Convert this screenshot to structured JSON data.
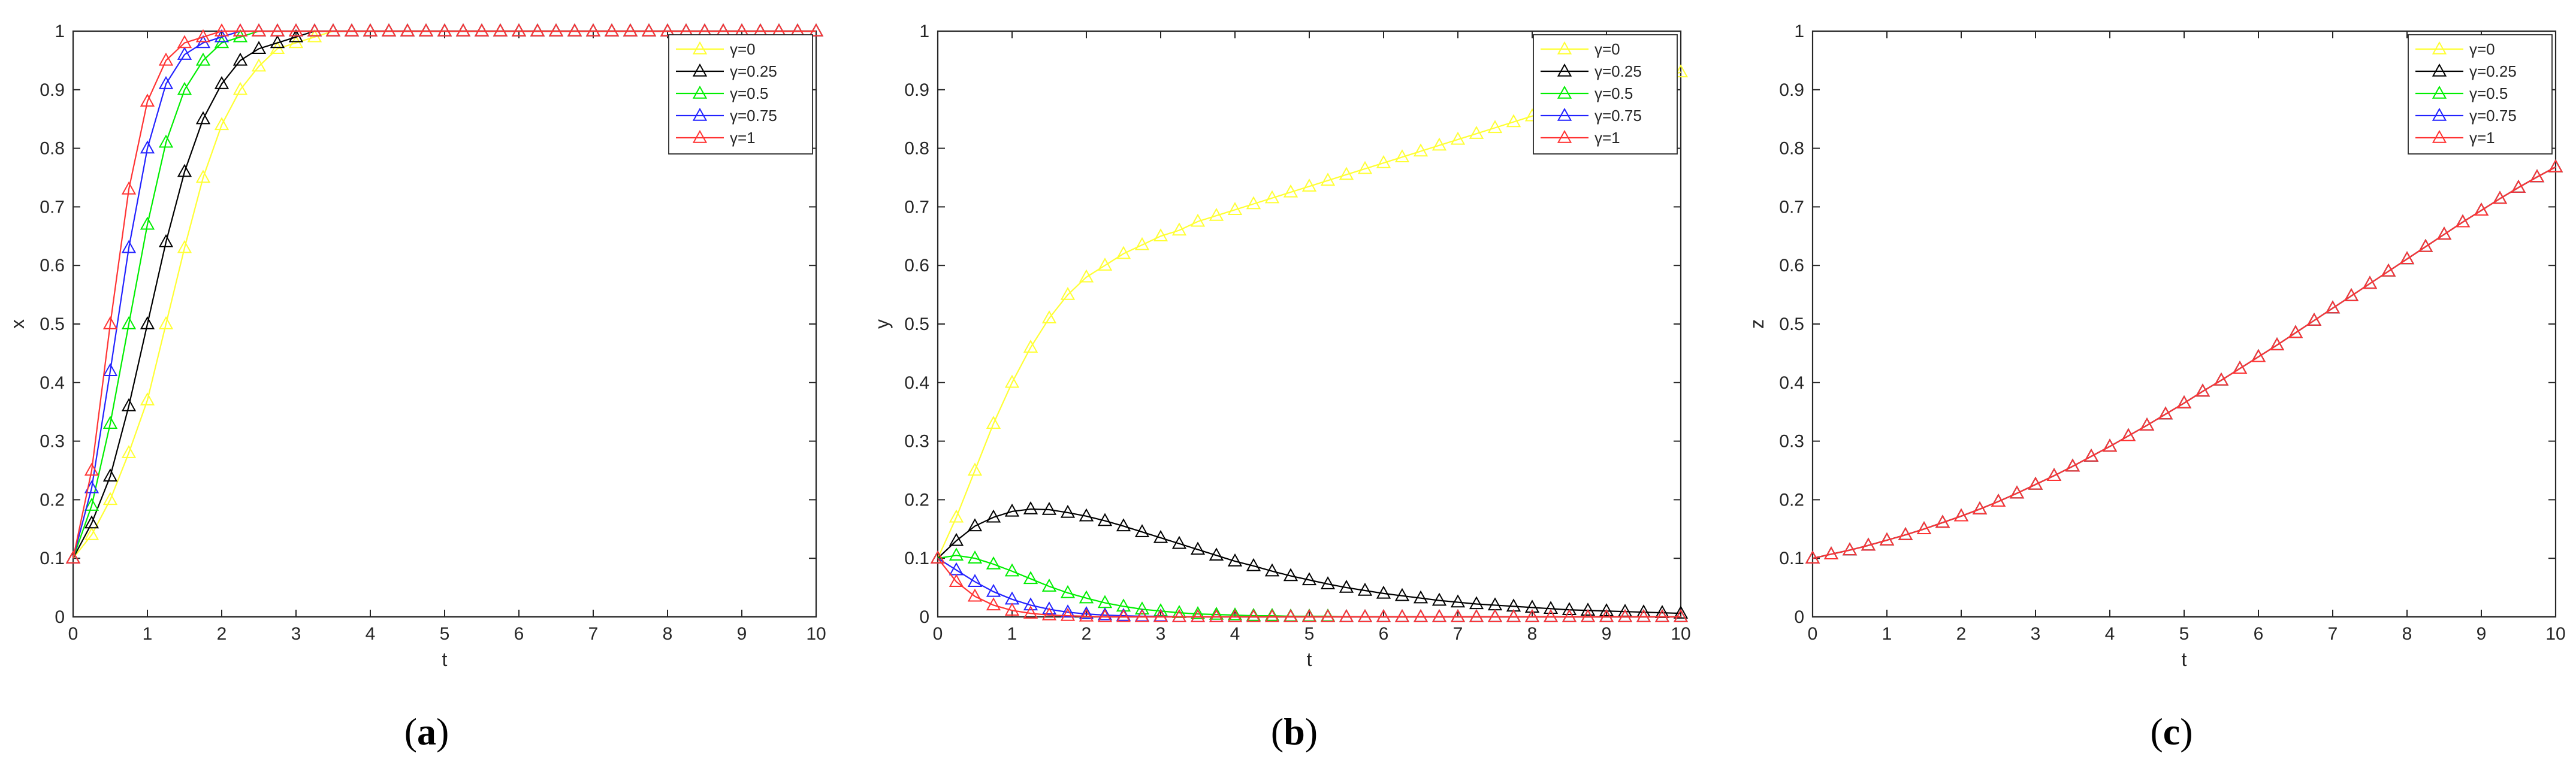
{
  "captions": [
    {
      "open": "(",
      "letter": "a",
      "close": ")"
    },
    {
      "open": "(",
      "letter": "b",
      "close": ")"
    },
    {
      "open": "(",
      "letter": "c",
      "close": ")"
    }
  ],
  "chart_data": [
    {
      "type": "line",
      "title": "",
      "xlabel": "t",
      "ylabel": "x",
      "xlim": [
        0,
        10
      ],
      "ylim": [
        0,
        1
      ],
      "xticks": [
        0,
        1,
        2,
        3,
        4,
        5,
        6,
        7,
        8,
        9,
        10
      ],
      "yticks": [
        0,
        0.1,
        0.2,
        0.3,
        0.4,
        0.5,
        0.6,
        0.7,
        0.8,
        0.9,
        1
      ],
      "legend_position": "top-right",
      "grid": false,
      "marker": "triangle",
      "x": [
        0,
        0.25,
        0.5,
        0.75,
        1,
        1.25,
        1.5,
        1.75,
        2,
        2.25,
        2.5,
        2.75,
        3,
        3.25,
        3.5,
        3.75,
        4,
        4.25,
        4.5,
        4.75,
        5,
        5.25,
        5.5,
        5.75,
        6,
        6.25,
        6.5,
        6.75,
        7,
        7.25,
        7.5,
        7.75,
        8,
        8.25,
        8.5,
        8.75,
        9,
        9.25,
        9.5,
        9.75,
        10
      ],
      "series": [
        {
          "name": "γ=0",
          "color": "#ffff33",
          "values": [
            0.1,
            0.14,
            0.2,
            0.28,
            0.37,
            0.5,
            0.63,
            0.75,
            0.84,
            0.9,
            0.94,
            0.97,
            0.98,
            0.99,
            1,
            1,
            1,
            1,
            1,
            1,
            1,
            1,
            1,
            1,
            1,
            1,
            1,
            1,
            1,
            1,
            1,
            1,
            1,
            1,
            1,
            1,
            1,
            1,
            1,
            1,
            1
          ]
        },
        {
          "name": "γ=0.25",
          "color": "#000000",
          "values": [
            0.1,
            0.16,
            0.24,
            0.36,
            0.5,
            0.64,
            0.76,
            0.85,
            0.91,
            0.95,
            0.97,
            0.98,
            0.99,
            1,
            1,
            1,
            1,
            1,
            1,
            1,
            1,
            1,
            1,
            1,
            1,
            1,
            1,
            1,
            1,
            1,
            1,
            1,
            1,
            1,
            1,
            1,
            1,
            1,
            1,
            1,
            1
          ]
        },
        {
          "name": "γ=0.5",
          "color": "#00ee00",
          "values": [
            0.1,
            0.19,
            0.33,
            0.5,
            0.67,
            0.81,
            0.9,
            0.95,
            0.98,
            0.99,
            1,
            1,
            1,
            1,
            1,
            1,
            1,
            1,
            1,
            1,
            1,
            1,
            1,
            1,
            1,
            1,
            1,
            1,
            1,
            1,
            1,
            1,
            1,
            1,
            1,
            1,
            1,
            1,
            1,
            1,
            1
          ]
        },
        {
          "name": "γ=0.75",
          "color": "#2222ff",
          "values": [
            0.1,
            0.22,
            0.42,
            0.63,
            0.8,
            0.91,
            0.96,
            0.98,
            0.99,
            1,
            1,
            1,
            1,
            1,
            1,
            1,
            1,
            1,
            1,
            1,
            1,
            1,
            1,
            1,
            1,
            1,
            1,
            1,
            1,
            1,
            1,
            1,
            1,
            1,
            1,
            1,
            1,
            1,
            1,
            1,
            1
          ]
        },
        {
          "name": "γ=1",
          "color": "#ff3333",
          "values": [
            0.1,
            0.25,
            0.5,
            0.73,
            0.88,
            0.95,
            0.98,
            0.99,
            1,
            1,
            1,
            1,
            1,
            1,
            1,
            1,
            1,
            1,
            1,
            1,
            1,
            1,
            1,
            1,
            1,
            1,
            1,
            1,
            1,
            1,
            1,
            1,
            1,
            1,
            1,
            1,
            1,
            1,
            1,
            1,
            1
          ]
        }
      ]
    },
    {
      "type": "line",
      "title": "",
      "xlabel": "t",
      "ylabel": "y",
      "xlim": [
        0,
        10
      ],
      "ylim": [
        0,
        1
      ],
      "xticks": [
        0,
        1,
        2,
        3,
        4,
        5,
        6,
        7,
        8,
        9,
        10
      ],
      "yticks": [
        0,
        0.1,
        0.2,
        0.3,
        0.4,
        0.5,
        0.6,
        0.7,
        0.8,
        0.9,
        1
      ],
      "legend_position": "top-right",
      "grid": false,
      "marker": "triangle",
      "x": [
        0,
        0.25,
        0.5,
        0.75,
        1,
        1.25,
        1.5,
        1.75,
        2,
        2.25,
        2.5,
        2.75,
        3,
        3.25,
        3.5,
        3.75,
        4,
        4.25,
        4.5,
        4.75,
        5,
        5.25,
        5.5,
        5.75,
        6,
        6.25,
        6.5,
        6.75,
        7,
        7.25,
        7.5,
        7.75,
        8,
        8.25,
        8.5,
        8.75,
        9,
        9.25,
        9.5,
        9.75,
        10
      ],
      "series": [
        {
          "name": "γ=0",
          "color": "#ffff33",
          "values": [
            0.1,
            0.17,
            0.25,
            0.33,
            0.4,
            0.46,
            0.51,
            0.55,
            0.58,
            0.6,
            0.62,
            0.635,
            0.65,
            0.66,
            0.675,
            0.685,
            0.695,
            0.705,
            0.715,
            0.725,
            0.735,
            0.745,
            0.755,
            0.765,
            0.775,
            0.785,
            0.795,
            0.805,
            0.815,
            0.825,
            0.835,
            0.845,
            0.855,
            0.865,
            0.875,
            0.885,
            0.895,
            0.905,
            0.913,
            0.921,
            0.93
          ]
        },
        {
          "name": "γ=0.25",
          "color": "#000000",
          "values": [
            0.1,
            0.13,
            0.155,
            0.17,
            0.18,
            0.184,
            0.183,
            0.178,
            0.172,
            0.164,
            0.155,
            0.145,
            0.135,
            0.125,
            0.115,
            0.105,
            0.095,
            0.087,
            0.078,
            0.07,
            0.063,
            0.056,
            0.05,
            0.045,
            0.04,
            0.036,
            0.032,
            0.028,
            0.025,
            0.022,
            0.02,
            0.018,
            0.016,
            0.014,
            0.012,
            0.011,
            0.01,
            0.009,
            0.008,
            0.007,
            0.006
          ]
        },
        {
          "name": "γ=0.5",
          "color": "#00ee00",
          "values": [
            0.1,
            0.105,
            0.1,
            0.09,
            0.078,
            0.065,
            0.052,
            0.041,
            0.032,
            0.024,
            0.018,
            0.013,
            0.01,
            0.007,
            0.005,
            0.004,
            0.003,
            0.002,
            0.002,
            0.001,
            0.001,
            0.001,
            0,
            0,
            0,
            0,
            0,
            0,
            0,
            0,
            0,
            0,
            0,
            0,
            0,
            0,
            0,
            0,
            0,
            0,
            0
          ]
        },
        {
          "name": "γ=0.75",
          "color": "#2222ff",
          "values": [
            0.1,
            0.08,
            0.06,
            0.043,
            0.03,
            0.02,
            0.013,
            0.008,
            0.005,
            0.003,
            0.002,
            0.001,
            0.001,
            0,
            0,
            0,
            0,
            0,
            0,
            0,
            0,
            0,
            0,
            0,
            0,
            0,
            0,
            0,
            0,
            0,
            0,
            0,
            0,
            0,
            0,
            0,
            0,
            0,
            0,
            0,
            0
          ]
        },
        {
          "name": "γ=1",
          "color": "#ff3333",
          "values": [
            0.1,
            0.06,
            0.035,
            0.02,
            0.011,
            0.006,
            0.003,
            0.002,
            0.001,
            0,
            0,
            0,
            0,
            0,
            0,
            0,
            0,
            0,
            0,
            0,
            0,
            0,
            0,
            0,
            0,
            0,
            0,
            0,
            0,
            0,
            0,
            0,
            0,
            0,
            0,
            0,
            0,
            0,
            0,
            0,
            0
          ]
        }
      ]
    },
    {
      "type": "line",
      "title": "",
      "xlabel": "t",
      "ylabel": "z",
      "xlim": [
        0,
        10
      ],
      "ylim": [
        0,
        1
      ],
      "xticks": [
        0,
        1,
        2,
        3,
        4,
        5,
        6,
        7,
        8,
        9,
        10
      ],
      "yticks": [
        0,
        0.1,
        0.2,
        0.3,
        0.4,
        0.5,
        0.6,
        0.7,
        0.8,
        0.9,
        1
      ],
      "legend_position": "top-right",
      "grid": false,
      "marker": "triangle",
      "x": [
        0,
        0.25,
        0.5,
        0.75,
        1,
        1.25,
        1.5,
        1.75,
        2,
        2.25,
        2.5,
        2.75,
        3,
        3.25,
        3.5,
        3.75,
        4,
        4.25,
        4.5,
        4.75,
        5,
        5.25,
        5.5,
        5.75,
        6,
        6.25,
        6.5,
        6.75,
        7,
        7.25,
        7.5,
        7.75,
        8,
        8.25,
        8.5,
        8.75,
        9,
        9.25,
        9.5,
        9.75,
        10
      ],
      "series": [
        {
          "name": "γ=0",
          "color": "#ffff33",
          "values": [
            0.1,
            0.107,
            0.114,
            0.122,
            0.131,
            0.14,
            0.15,
            0.161,
            0.172,
            0.184,
            0.197,
            0.211,
            0.226,
            0.241,
            0.257,
            0.274,
            0.291,
            0.309,
            0.327,
            0.346,
            0.365,
            0.385,
            0.404,
            0.424,
            0.444,
            0.464,
            0.485,
            0.506,
            0.527,
            0.548,
            0.569,
            0.59,
            0.611,
            0.632,
            0.653,
            0.674,
            0.694,
            0.714,
            0.733,
            0.751,
            0.768
          ]
        },
        {
          "name": "γ=0.25",
          "color": "#000000",
          "values": [
            0.1,
            0.107,
            0.114,
            0.122,
            0.131,
            0.14,
            0.15,
            0.161,
            0.172,
            0.184,
            0.197,
            0.211,
            0.226,
            0.241,
            0.257,
            0.274,
            0.291,
            0.309,
            0.327,
            0.346,
            0.365,
            0.385,
            0.404,
            0.424,
            0.444,
            0.464,
            0.485,
            0.506,
            0.527,
            0.548,
            0.569,
            0.59,
            0.611,
            0.632,
            0.653,
            0.674,
            0.694,
            0.714,
            0.733,
            0.751,
            0.768
          ]
        },
        {
          "name": "γ=0.5",
          "color": "#00ee00",
          "values": [
            0.1,
            0.107,
            0.114,
            0.122,
            0.131,
            0.14,
            0.15,
            0.161,
            0.172,
            0.184,
            0.197,
            0.211,
            0.226,
            0.241,
            0.257,
            0.274,
            0.291,
            0.309,
            0.327,
            0.346,
            0.365,
            0.385,
            0.404,
            0.424,
            0.444,
            0.464,
            0.485,
            0.506,
            0.527,
            0.548,
            0.569,
            0.59,
            0.611,
            0.632,
            0.653,
            0.674,
            0.694,
            0.714,
            0.733,
            0.751,
            0.768
          ]
        },
        {
          "name": "γ=0.75",
          "color": "#2222ff",
          "values": [
            0.1,
            0.107,
            0.114,
            0.122,
            0.131,
            0.14,
            0.15,
            0.161,
            0.172,
            0.184,
            0.197,
            0.211,
            0.226,
            0.241,
            0.257,
            0.274,
            0.291,
            0.309,
            0.327,
            0.346,
            0.365,
            0.385,
            0.404,
            0.424,
            0.444,
            0.464,
            0.485,
            0.506,
            0.527,
            0.548,
            0.569,
            0.59,
            0.611,
            0.632,
            0.653,
            0.674,
            0.694,
            0.714,
            0.733,
            0.751,
            0.768
          ]
        },
        {
          "name": "γ=1",
          "color": "#ff3333",
          "values": [
            0.1,
            0.107,
            0.114,
            0.122,
            0.131,
            0.14,
            0.15,
            0.161,
            0.172,
            0.184,
            0.197,
            0.211,
            0.226,
            0.241,
            0.257,
            0.274,
            0.291,
            0.309,
            0.327,
            0.346,
            0.365,
            0.385,
            0.404,
            0.424,
            0.444,
            0.464,
            0.485,
            0.506,
            0.527,
            0.548,
            0.569,
            0.59,
            0.611,
            0.632,
            0.653,
            0.674,
            0.694,
            0.714,
            0.733,
            0.751,
            0.768
          ]
        }
      ]
    }
  ]
}
